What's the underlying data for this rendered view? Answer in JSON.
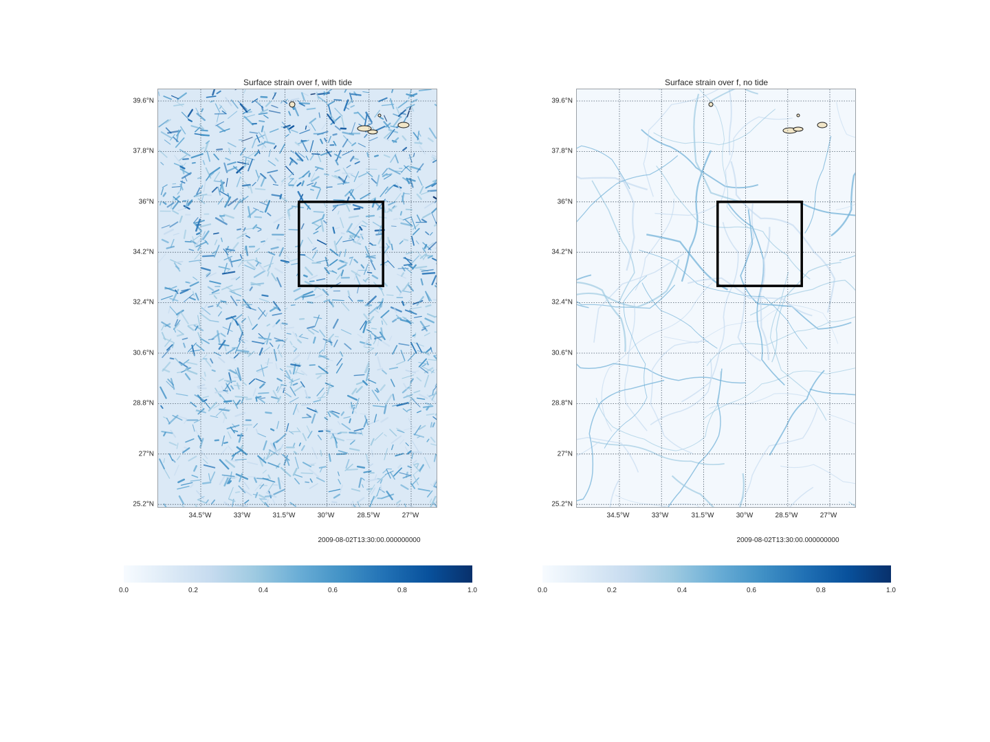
{
  "colormap": {
    "name": "Blues",
    "stops": [
      "#f7fbff",
      "#deebf7",
      "#c6dbef",
      "#9ecae1",
      "#6baed6",
      "#4292c6",
      "#2171b5",
      "#08519c",
      "#08306b"
    ]
  },
  "panels": [
    {
      "title": "Surface strain over f, with tide",
      "lat_ticks": [
        "39.6°N",
        "37.8°N",
        "36°N",
        "34.2°N",
        "32.4°N",
        "30.6°N",
        "28.8°N",
        "27°N",
        "25.2°N"
      ],
      "lon_ticks": [
        "34.5°W",
        "33°W",
        "31.5°W",
        "30°W",
        "28.5°W",
        "27°W"
      ],
      "timestamp": "2009-08-02T13:30:00.000000000",
      "colorbar": {
        "ticks": [
          "0.0",
          "0.2",
          "0.4",
          "0.6",
          "0.8",
          "1.0"
        ],
        "range": [
          0.0,
          1.0
        ]
      },
      "field_intensity": "high",
      "box_region": {
        "lon": [
          -31.0,
          -28.0
        ],
        "lat": [
          33.0,
          36.0
        ]
      }
    },
    {
      "title": "Surface strain over f, no tide",
      "lat_ticks": [
        "39.6°N",
        "37.8°N",
        "36°N",
        "34.2°N",
        "32.4°N",
        "30.6°N",
        "28.8°N",
        "27°N",
        "25.2°N"
      ],
      "lon_ticks": [
        "34.5°W",
        "33°W",
        "31.5°W",
        "30°W",
        "28.5°W",
        "27°W"
      ],
      "timestamp": "2009-08-02T13:30:00.000000000",
      "colorbar": {
        "ticks": [
          "0.0",
          "0.2",
          "0.4",
          "0.6",
          "0.8",
          "1.0"
        ],
        "range": [
          0.0,
          1.0
        ]
      },
      "field_intensity": "low",
      "box_region": {
        "lon": [
          -31.0,
          -28.0
        ],
        "lat": [
          33.0,
          36.0
        ]
      }
    }
  ]
}
